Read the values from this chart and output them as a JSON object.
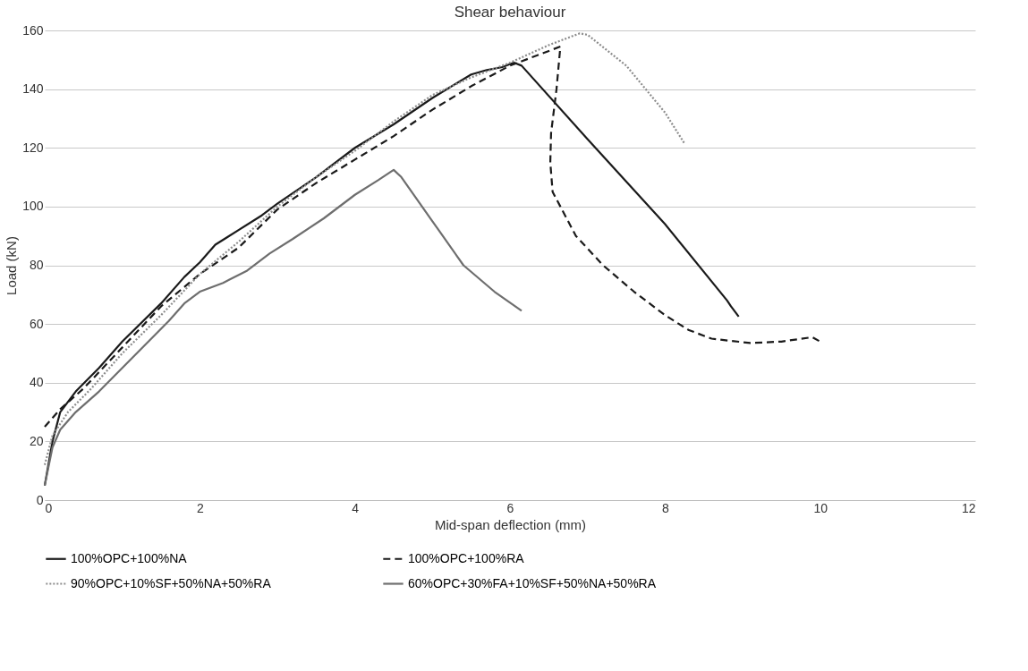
{
  "chart_data": {
    "type": "line",
    "title": "Shear behaviour",
    "xlabel": "Mid-span deflection (mm)",
    "ylabel": "Load (kN)",
    "xlim": [
      0,
      12
    ],
    "xticks": [
      0,
      2,
      4,
      6,
      8,
      10,
      12
    ],
    "ylim": [
      0,
      160
    ],
    "yticks": [
      0,
      20,
      40,
      60,
      80,
      100,
      120,
      140,
      160
    ],
    "grid": "y",
    "legend": "bottom",
    "marker": "none",
    "series": [
      {
        "name": "100%OPC+100%NA",
        "color": "#1a1a1a",
        "line_style": "solid",
        "x": [
          0,
          0.1,
          0.2,
          0.4,
          0.7,
          1,
          1.5,
          1.8,
          2,
          2.2,
          2.5,
          2.8,
          3,
          3.5,
          4,
          4.5,
          5,
          5.5,
          5.7,
          5.9,
          6.05,
          6.15,
          7,
          8,
          8.8,
          8.85,
          8.95
        ],
        "values": [
          5,
          20,
          30,
          37,
          45,
          54,
          67,
          76,
          81,
          87,
          92,
          97,
          101,
          110,
          120,
          128,
          137,
          145,
          146.5,
          147.5,
          149,
          148,
          123,
          94,
          68,
          66,
          62.5
        ]
      },
      {
        "name": "100%OPC+100%RA",
        "color": "#1a1a1a",
        "line_style": "dashed",
        "x": [
          0,
          0.2,
          0.5,
          1,
          1.5,
          2,
          2.5,
          3,
          3.5,
          4,
          4.5,
          5,
          5.5,
          6,
          6.3,
          6.65,
          6.6,
          6.53,
          6.52,
          6.55,
          6.65,
          6.85,
          7.2,
          7.6,
          8,
          8.3,
          8.6,
          9.1,
          9.5,
          9.9,
          10
        ],
        "values": [
          25,
          31,
          38,
          52,
          66,
          77,
          86,
          99,
          108,
          116,
          124,
          133,
          141,
          148,
          151,
          154.5,
          140,
          125,
          115,
          105,
          100,
          90,
          80,
          71,
          63,
          58,
          55,
          53.5,
          54,
          55.5,
          54
        ]
      },
      {
        "name": "90%OPC+10%SF+50%NA+50%RA",
        "color": "#8c8c8c",
        "line_style": "dotted",
        "x": [
          0,
          0.1,
          0.3,
          0.6,
          1,
          1.5,
          2,
          2.5,
          3,
          3.5,
          4,
          4.5,
          5,
          5.5,
          6,
          6.5,
          6.9,
          7,
          7.5,
          8,
          8.25
        ],
        "values": [
          12,
          22,
          30,
          38,
          50,
          63,
          77,
          88,
          100,
          110,
          119,
          129,
          138,
          144,
          149,
          155,
          159,
          158.5,
          148,
          132,
          121.5
        ]
      },
      {
        "name": "60%OPC+30%FA+10%SF+50%NA+50%RA",
        "color": "#6e6e6e",
        "line_style": "solid",
        "x": [
          0,
          0.1,
          0.2,
          0.4,
          0.7,
          1,
          1.3,
          1.6,
          1.8,
          2,
          2.3,
          2.6,
          2.9,
          3.2,
          3.6,
          4,
          4.3,
          4.5,
          4.6,
          5,
          5.4,
          5.8,
          6.15
        ],
        "values": [
          5,
          18,
          24,
          30,
          37,
          45,
          53,
          61,
          67,
          71,
          74,
          78,
          84,
          89,
          96,
          104,
          109,
          112.5,
          110,
          95,
          80,
          71,
          64.5
        ]
      }
    ]
  }
}
